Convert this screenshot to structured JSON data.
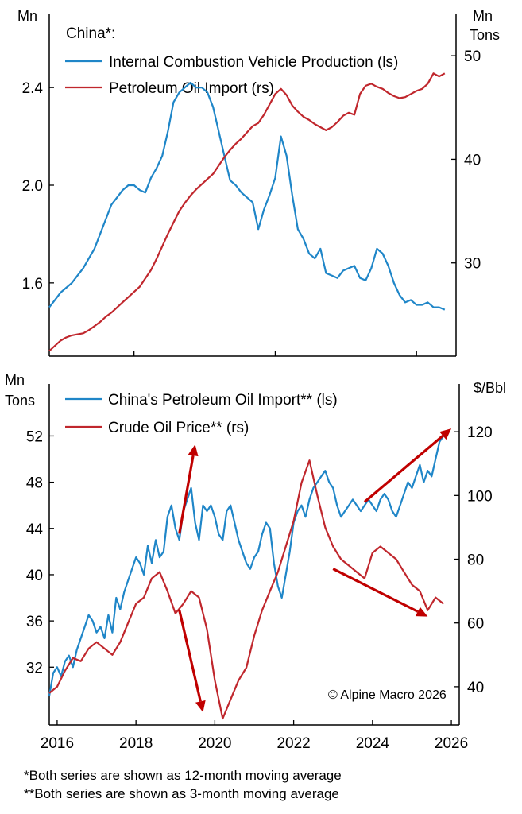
{
  "colors": {
    "blue": "#1f86c8",
    "red": "#c0272d",
    "arrow": "#c00000",
    "axis": "#000000"
  },
  "footnotes": [
    "*Both series are shown as 12-month moving average",
    "**Both series are shown as 3-month moving average"
  ],
  "copyright": "© Alpine Macro 2026",
  "chart_data": [
    {
      "type": "line",
      "legend_title": "China*:",
      "left_unit": "Mn",
      "right_unit": [
        "Mn",
        "Tons"
      ],
      "x_ticks": [
        "2015",
        "2020",
        "2025"
      ],
      "x_range": [
        2012.0,
        2026.4
      ],
      "y_left": {
        "range": [
          1.3,
          2.7
        ],
        "ticks": [
          1.6,
          2.0,
          2.4
        ],
        "tick_labels": [
          "1.6",
          "2.0",
          "2.4"
        ]
      },
      "y_right": {
        "range": [
          21,
          54
        ],
        "ticks": [
          30,
          40,
          50
        ],
        "tick_labels": [
          "30",
          "40",
          "50"
        ]
      },
      "series": [
        {
          "name": "Internal Combustion Vehicle Production (ls)",
          "axis": "left",
          "color": "#1f86c8",
          "x": [
            2012.0,
            2012.2,
            2012.4,
            2012.6,
            2012.8,
            2013.0,
            2013.2,
            2013.4,
            2013.6,
            2013.8,
            2014.0,
            2014.2,
            2014.4,
            2014.6,
            2014.8,
            2015.0,
            2015.2,
            2015.4,
            2015.6,
            2015.8,
            2016.0,
            2016.2,
            2016.4,
            2016.6,
            2016.8,
            2017.0,
            2017.2,
            2017.4,
            2017.6,
            2017.8,
            2018.0,
            2018.2,
            2018.4,
            2018.6,
            2018.8,
            2019.0,
            2019.2,
            2019.4,
            2019.6,
            2019.8,
            2020.0,
            2020.2,
            2020.4,
            2020.6,
            2020.8,
            2021.0,
            2021.2,
            2021.4,
            2021.6,
            2021.8,
            2022.0,
            2022.2,
            2022.4,
            2022.6,
            2022.8,
            2023.0,
            2023.2,
            2023.4,
            2023.6,
            2023.8,
            2024.0,
            2024.2,
            2024.4,
            2024.6,
            2024.8,
            2025.0,
            2025.2,
            2025.4,
            2025.6,
            2025.8,
            2026.0
          ],
          "y": [
            1.5,
            1.53,
            1.56,
            1.58,
            1.6,
            1.63,
            1.66,
            1.7,
            1.74,
            1.8,
            1.86,
            1.92,
            1.95,
            1.98,
            2.0,
            2.0,
            1.98,
            1.97,
            2.03,
            2.07,
            2.12,
            2.22,
            2.34,
            2.38,
            2.4,
            2.42,
            2.4,
            2.4,
            2.38,
            2.32,
            2.22,
            2.12,
            2.02,
            2.0,
            1.97,
            1.95,
            1.93,
            1.82,
            1.9,
            1.96,
            2.03,
            2.2,
            2.12,
            1.96,
            1.82,
            1.78,
            1.72,
            1.7,
            1.74,
            1.64,
            1.63,
            1.62,
            1.65,
            1.66,
            1.67,
            1.62,
            1.61,
            1.66,
            1.74,
            1.72,
            1.67,
            1.6,
            1.55,
            1.52,
            1.53,
            1.51,
            1.51,
            1.52,
            1.5,
            1.5,
            1.49
          ]
        },
        {
          "name": "Petroleum Oil Import (rs)",
          "axis": "right",
          "color": "#c0272d",
          "x": [
            2012.0,
            2012.2,
            2012.4,
            2012.6,
            2012.8,
            2013.0,
            2013.2,
            2013.4,
            2013.6,
            2013.8,
            2014.0,
            2014.2,
            2014.4,
            2014.6,
            2014.8,
            2015.0,
            2015.2,
            2015.4,
            2015.6,
            2015.8,
            2016.0,
            2016.2,
            2016.4,
            2016.6,
            2016.8,
            2017.0,
            2017.2,
            2017.4,
            2017.6,
            2017.8,
            2018.0,
            2018.2,
            2018.4,
            2018.6,
            2018.8,
            2019.0,
            2019.2,
            2019.4,
            2019.6,
            2019.8,
            2020.0,
            2020.2,
            2020.4,
            2020.6,
            2020.8,
            2021.0,
            2021.2,
            2021.4,
            2021.6,
            2021.8,
            2022.0,
            2022.2,
            2022.4,
            2022.6,
            2022.8,
            2023.0,
            2023.2,
            2023.4,
            2023.6,
            2023.8,
            2024.0,
            2024.2,
            2024.4,
            2024.6,
            2024.8,
            2025.0,
            2025.2,
            2025.4,
            2025.6,
            2025.8,
            2026.0
          ],
          "y": [
            21.5,
            22.0,
            22.5,
            22.8,
            23.0,
            23.1,
            23.2,
            23.5,
            23.9,
            24.3,
            24.8,
            25.2,
            25.7,
            26.2,
            26.7,
            27.2,
            27.7,
            28.5,
            29.3,
            30.4,
            31.6,
            32.8,
            33.9,
            35.0,
            35.8,
            36.5,
            37.1,
            37.6,
            38.1,
            38.6,
            39.4,
            40.2,
            40.9,
            41.5,
            42.0,
            42.6,
            43.2,
            43.5,
            44.3,
            45.3,
            46.3,
            46.8,
            46.2,
            45.2,
            44.6,
            44.1,
            43.8,
            43.4,
            43.1,
            42.8,
            43.1,
            43.6,
            44.2,
            44.5,
            44.3,
            46.3,
            47.1,
            47.3,
            47.0,
            46.8,
            46.4,
            46.1,
            45.9,
            46.0,
            46.3,
            46.6,
            46.8,
            47.3,
            48.3,
            48.0,
            48.3
          ]
        }
      ]
    },
    {
      "type": "line",
      "left_unit": [
        "Mn",
        "Tons"
      ],
      "right_unit": "$/Bbl",
      "x_ticks": [
        "2016",
        "2018",
        "2020",
        "2022",
        "2024",
        "2026"
      ],
      "x_range": [
        2015.8,
        2026.2
      ],
      "y_left": {
        "range": [
          27,
          56.5
        ],
        "ticks": [
          32,
          36,
          40,
          44,
          48,
          52
        ],
        "tick_labels": [
          "32",
          "36",
          "40",
          "44",
          "48",
          "52"
        ]
      },
      "y_right": {
        "range": [
          28,
          135
        ],
        "ticks": [
          40,
          60,
          80,
          100,
          120
        ],
        "tick_labels": [
          "40",
          "60",
          "80",
          "100",
          "120"
        ]
      },
      "series": [
        {
          "name": "China's Petroleum Oil Import** (ls)",
          "axis": "left",
          "color": "#1f86c8",
          "x": [
            2015.8,
            2015.9,
            2016.0,
            2016.1,
            2016.2,
            2016.3,
            2016.4,
            2016.5,
            2016.6,
            2016.7,
            2016.8,
            2016.9,
            2017.0,
            2017.1,
            2017.2,
            2017.3,
            2017.4,
            2017.5,
            2017.6,
            2017.7,
            2017.8,
            2017.9,
            2018.0,
            2018.1,
            2018.2,
            2018.3,
            2018.4,
            2018.5,
            2018.6,
            2018.7,
            2018.8,
            2018.9,
            2019.0,
            2019.1,
            2019.2,
            2019.3,
            2019.4,
            2019.5,
            2019.6,
            2019.7,
            2019.8,
            2019.9,
            2020.0,
            2020.1,
            2020.2,
            2020.3,
            2020.4,
            2020.5,
            2020.6,
            2020.7,
            2020.8,
            2020.9,
            2021.0,
            2021.1,
            2021.2,
            2021.3,
            2021.4,
            2021.5,
            2021.6,
            2021.7,
            2021.8,
            2021.9,
            2022.0,
            2022.1,
            2022.2,
            2022.3,
            2022.4,
            2022.5,
            2022.6,
            2022.7,
            2022.8,
            2022.9,
            2023.0,
            2023.1,
            2023.2,
            2023.3,
            2023.4,
            2023.5,
            2023.6,
            2023.7,
            2023.8,
            2023.9,
            2024.0,
            2024.1,
            2024.2,
            2024.3,
            2024.4,
            2024.5,
            2024.6,
            2024.7,
            2024.8,
            2024.9,
            2025.0,
            2025.1,
            2025.2,
            2025.3,
            2025.4,
            2025.5,
            2025.6,
            2025.7,
            2025.8
          ],
          "y": [
            29.5,
            31.5,
            32.0,
            31.2,
            32.5,
            33.0,
            32.0,
            33.5,
            34.5,
            35.5,
            36.5,
            36.0,
            35.0,
            35.5,
            34.5,
            36.5,
            35.0,
            38.0,
            37.0,
            38.5,
            39.5,
            40.5,
            41.5,
            41.0,
            40.0,
            42.5,
            41.0,
            43.0,
            41.5,
            42.0,
            45.0,
            46.0,
            44.0,
            43.0,
            45.5,
            46.5,
            47.5,
            44.5,
            43.0,
            46.0,
            45.5,
            46.0,
            45.0,
            43.5,
            43.0,
            45.5,
            46.0,
            44.5,
            43.0,
            42.0,
            41.0,
            40.5,
            41.5,
            42.0,
            43.5,
            44.5,
            44.0,
            41.0,
            39.0,
            38.0,
            40.0,
            42.0,
            44.5,
            45.5,
            46.0,
            45.0,
            46.5,
            47.5,
            48.0,
            48.5,
            49.0,
            48.0,
            47.5,
            46.0,
            45.0,
            45.5,
            46.0,
            46.5,
            46.0,
            45.5,
            46.0,
            46.5,
            46.0,
            45.5,
            46.5,
            47.0,
            46.5,
            45.5,
            45.0,
            46.0,
            47.0,
            48.0,
            47.5,
            48.5,
            49.5,
            48.0,
            49.0,
            48.5,
            50.0,
            51.5,
            52.0
          ]
        },
        {
          "name": "Crude Oil Price** (rs)",
          "axis": "right",
          "color": "#c0272d",
          "x": [
            2015.8,
            2016.0,
            2016.2,
            2016.4,
            2016.6,
            2016.8,
            2017.0,
            2017.2,
            2017.4,
            2017.6,
            2017.8,
            2018.0,
            2018.2,
            2018.4,
            2018.6,
            2018.8,
            2019.0,
            2019.2,
            2019.4,
            2019.6,
            2019.8,
            2020.0,
            2020.2,
            2020.4,
            2020.6,
            2020.8,
            2021.0,
            2021.2,
            2021.4,
            2021.6,
            2021.8,
            2022.0,
            2022.2,
            2022.4,
            2022.6,
            2022.8,
            2023.0,
            2023.2,
            2023.4,
            2023.6,
            2023.8,
            2024.0,
            2024.2,
            2024.4,
            2024.6,
            2024.8,
            2025.0,
            2025.2,
            2025.4,
            2025.6,
            2025.8
          ],
          "y": [
            38,
            40,
            45,
            49,
            48,
            52,
            54,
            52,
            50,
            54,
            60,
            66,
            68,
            74,
            76,
            70,
            63,
            66,
            70,
            68,
            58,
            42,
            30,
            36,
            42,
            46,
            56,
            64,
            70,
            76,
            84,
            92,
            104,
            111,
            100,
            90,
            84,
            80,
            78,
            76,
            74,
            82,
            84,
            82,
            80,
            76,
            72,
            70,
            64,
            68,
            66
          ]
        }
      ],
      "arrows": [
        {
          "from": [
            2019.1,
            88
          ],
          "to": [
            2019.5,
            116
          ]
        },
        {
          "from": [
            2019.1,
            64
          ],
          "to": [
            2019.7,
            32
          ]
        },
        {
          "from": [
            2023.8,
            98
          ],
          "to": [
            2026.0,
            121
          ]
        },
        {
          "from": [
            2023.0,
            77
          ],
          "to": [
            2025.4,
            62
          ]
        }
      ]
    }
  ]
}
